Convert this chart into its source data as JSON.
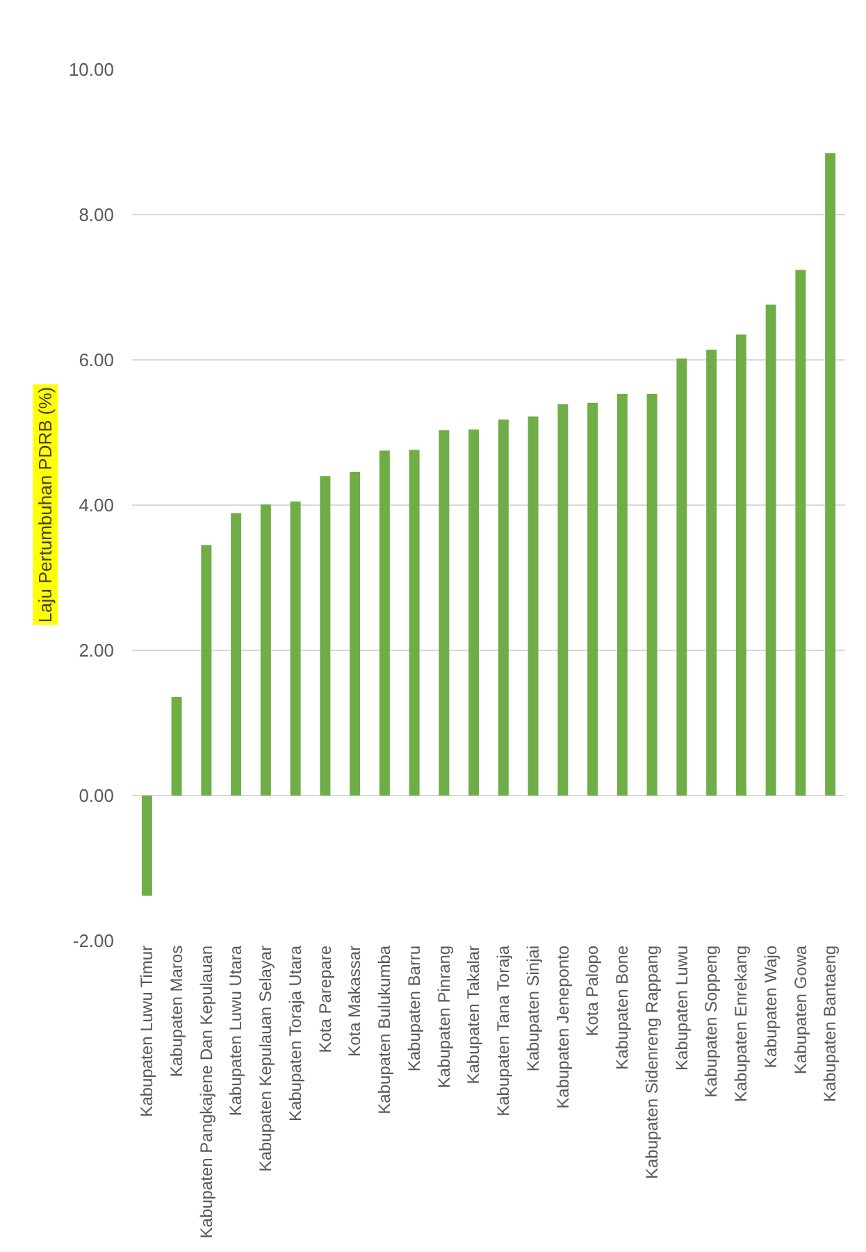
{
  "chart_data": {
    "type": "bar",
    "ylabel": "Laju Pertumbuhan PDRB (%)",
    "categories": [
      "Kabupaten Luwu Timur",
      "Kabupaten Maros",
      "Kabupaten Pangkajene Dan Kepulauan",
      "Kabupaten Luwu Utara",
      "Kabupaten Kepulauan Selayar",
      "Kabupaten Toraja Utara",
      "Kota Parepare",
      "Kota Makassar",
      "Kabupaten Bulukumba",
      "Kabupaten Barru",
      "Kabupaten Pinrang",
      "Kabupaten Takalar",
      "Kabupaten Tana Toraja",
      "Kabupaten Sinjai",
      "Kabupaten Jeneponto",
      "Kota Palopo",
      "Kabupaten Bone",
      "Kabupaten Sidenreng Rappang",
      "Kabupaten Luwu",
      "Kabupaten Soppeng",
      "Kabupaten Enrekang",
      "Kabupaten Wajo",
      "Kabupaten Gowa",
      "Kabupaten Bantaeng"
    ],
    "values": [
      -1.38,
      1.36,
      3.45,
      3.89,
      4.01,
      4.05,
      4.4,
      4.46,
      4.75,
      4.76,
      5.03,
      5.04,
      5.18,
      5.22,
      5.39,
      5.41,
      5.53,
      5.53,
      6.02,
      6.14,
      6.35,
      6.76,
      7.24,
      8.85
    ],
    "color": "#70ad47",
    "ylim": [
      -2,
      10
    ],
    "yticks": [
      {
        "value": -2,
        "label": "-2.00"
      },
      {
        "value": 0,
        "label": "0.00"
      },
      {
        "value": 2,
        "label": "2.00"
      },
      {
        "value": 4,
        "label": "4.00"
      },
      {
        "value": 6,
        "label": "6.00"
      },
      {
        "value": 8,
        "label": "8.00"
      },
      {
        "value": 10,
        "label": "10.00"
      }
    ],
    "grid": "y"
  }
}
